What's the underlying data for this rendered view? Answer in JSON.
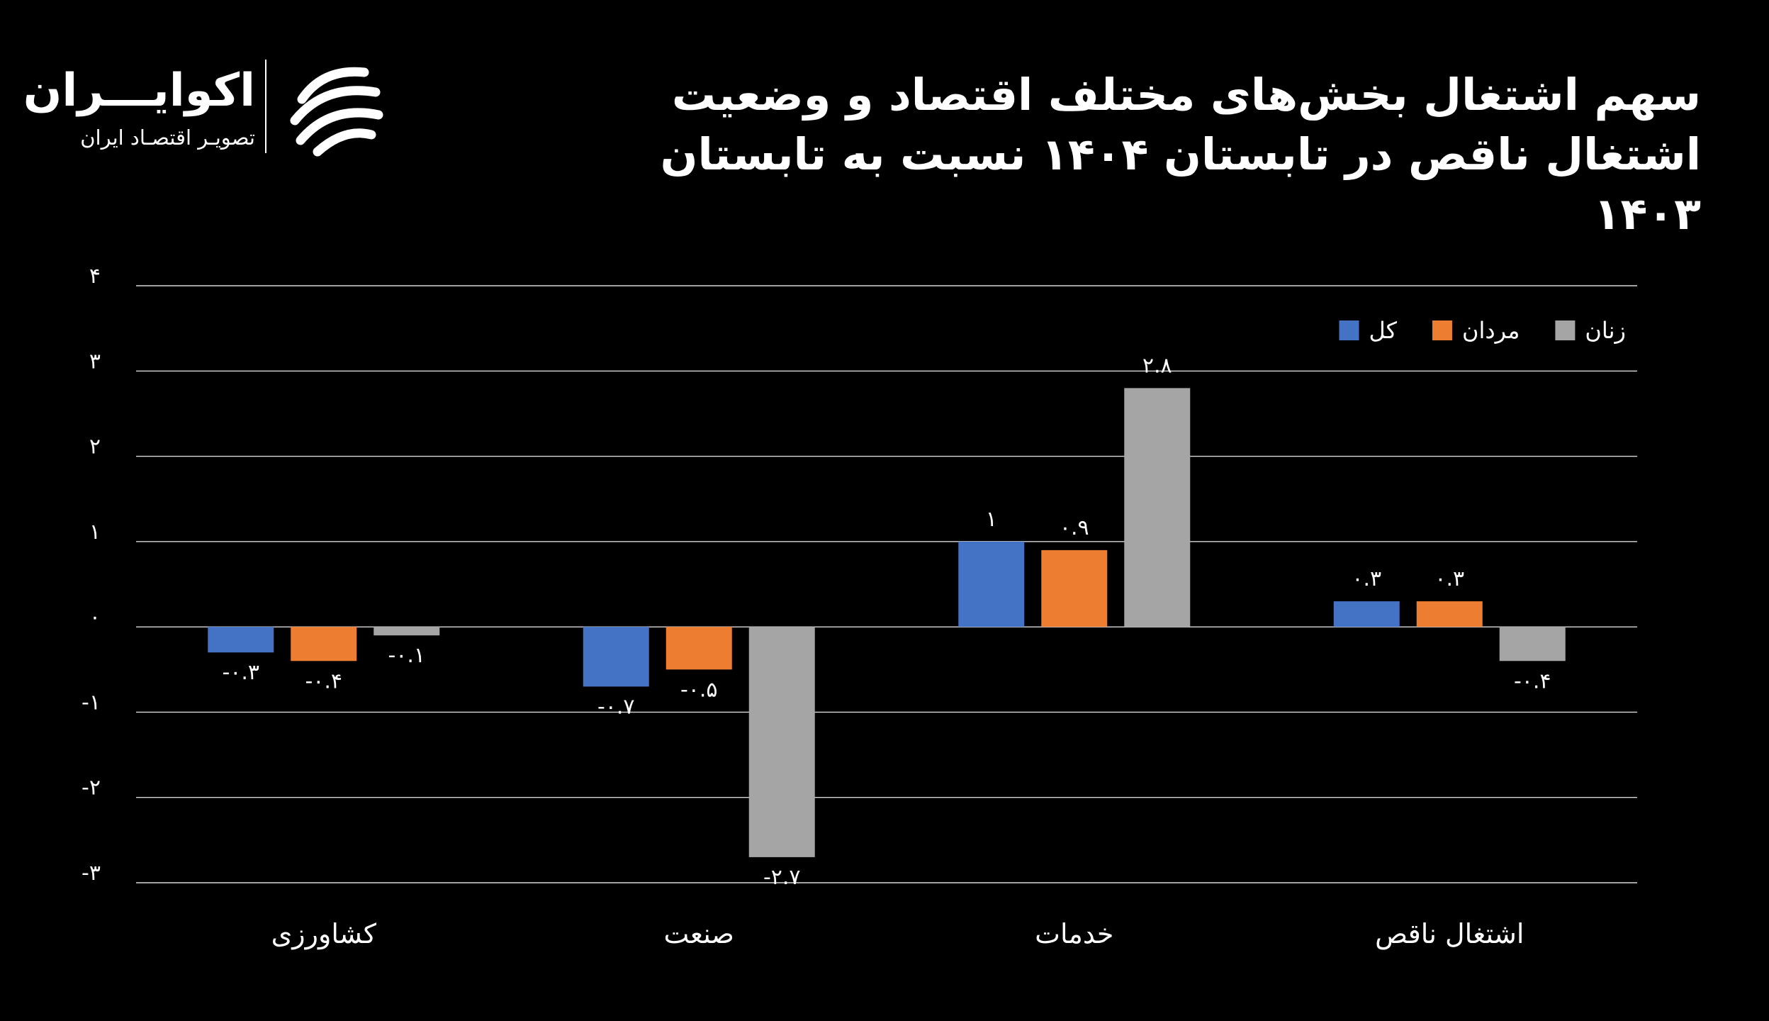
{
  "header": {
    "title": "سهم اشتغال بخش‌های مختلف اقتصاد و وضعیت اشتغال ناقص در تابستان ۱۴۰۴ نسبت به تابستان ۱۴۰۳"
  },
  "logo": {
    "name": "اکوایـــران",
    "tagline": "تصویـر اقتصـاد ایران",
    "icon": "ecoiran-swirl-logo"
  },
  "chart_data": {
    "type": "bar",
    "categories": [
      "کشاورزی",
      "صنعت",
      "خدمات",
      "اشتغال ناقص"
    ],
    "series": [
      {
        "name": "کل",
        "color": "#4472C4",
        "values": [
          -0.3,
          -0.7,
          1,
          0.3
        ],
        "labels": [
          "-۰.۳",
          "-۰.۷",
          "۱",
          "۰.۳"
        ]
      },
      {
        "name": "مردان",
        "color": "#ED7D31",
        "values": [
          -0.4,
          -0.5,
          0.9,
          0.3
        ],
        "labels": [
          "-۰.۴",
          "-۰.۵",
          "۰.۹",
          "۰.۳"
        ]
      },
      {
        "name": "زنان",
        "color": "#A5A5A5",
        "values": [
          -0.1,
          -2.7,
          2.8,
          -0.4
        ],
        "labels": [
          "-۰.۱",
          "-۲.۷",
          "۲.۸",
          "-۰.۴"
        ]
      }
    ],
    "ylim": [
      -3,
      4
    ],
    "yticks": [
      4,
      3,
      2,
      1,
      0,
      -1,
      -2,
      -3
    ],
    "ytick_labels": [
      "۴",
      "۳",
      "۲",
      "۱",
      "۰",
      "-۱",
      "-۲",
      "-۳"
    ],
    "grid": true,
    "gridline_color": "#D9D9D9",
    "legend_position": "top-right",
    "legend_order": [
      "زنان",
      "مردان",
      "کل"
    ],
    "background": "#000000",
    "title": "سهم اشتغال بخش‌های مختلف اقتصاد و وضعیت اشتغال ناقص در تابستان ۱۴۰۴ نسبت به تابستان ۱۴۰۳",
    "xlabel": "",
    "ylabel": ""
  }
}
